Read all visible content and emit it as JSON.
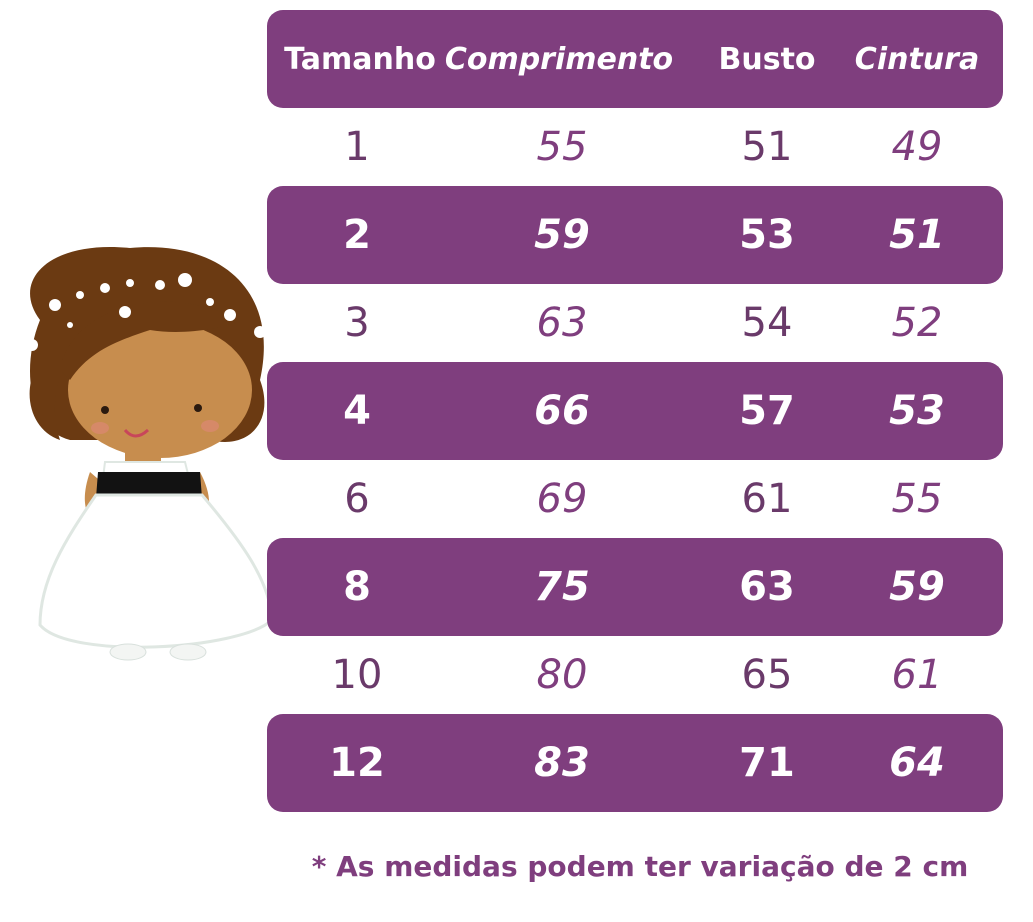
{
  "table": {
    "headers": [
      "Tamanho",
      "Comprimento",
      "Busto",
      "Cintura"
    ],
    "rows": [
      [
        "1",
        "55",
        "51",
        "49"
      ],
      [
        "2",
        "59",
        "53",
        "51"
      ],
      [
        "3",
        "63",
        "54",
        "52"
      ],
      [
        "4",
        "66",
        "57",
        "53"
      ],
      [
        "6",
        "69",
        "61",
        "55"
      ],
      [
        "8",
        "75",
        "63",
        "59"
      ],
      [
        "10",
        "80",
        "65",
        "61"
      ],
      [
        "12",
        "83",
        "71",
        "64"
      ]
    ]
  },
  "footnote": "* As medidas podem ter variação de 2 cm",
  "colors": {
    "accent": "#7f3e7e",
    "text_light": "#ffffff"
  },
  "illustration": {
    "icon": "flower-girl-illustration"
  }
}
